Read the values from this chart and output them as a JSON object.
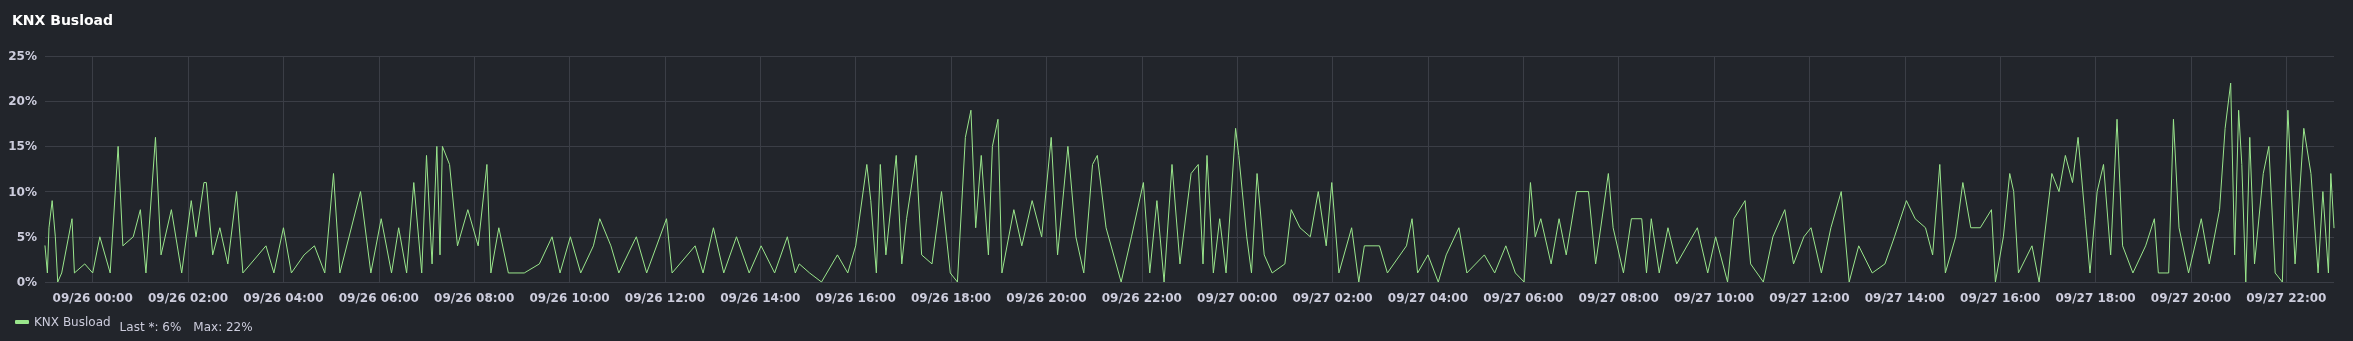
{
  "chart_data": {
    "type": "line",
    "title": "KNX Busload",
    "annotations": [
      "Last *: 6%",
      "Max: 22%"
    ],
    "legend": "bottom left",
    "grid": true,
    "marker": "none",
    "line_style": "solid",
    "xlim": [
      "--09-25T23:00",
      "--09-27T23:00"
    ],
    "xticks": [
      {
        "value": "--09-26T00:00",
        "label": "09/26 00:00"
      },
      {
        "value": "--09-26T02:00",
        "label": "09/26 02:00"
      },
      {
        "value": "--09-26T04:00",
        "label": "09/26 04:00"
      },
      {
        "value": "--09-26T06:00",
        "label": "09/26 06:00"
      },
      {
        "value": "--09-26T08:00",
        "label": "09/26 08:00"
      },
      {
        "value": "--09-26T10:00",
        "label": "09/26 10:00"
      },
      {
        "value": "--09-26T12:00",
        "label": "09/26 12:00"
      },
      {
        "value": "--09-26T14:00",
        "label": "09/26 14:00"
      },
      {
        "value": "--09-26T16:00",
        "label": "09/26 16:00"
      },
      {
        "value": "--09-26T18:00",
        "label": "09/26 18:00"
      },
      {
        "value": "--09-26T20:00",
        "label": "09/26 20:00"
      },
      {
        "value": "--09-26T22:00",
        "label": "09/26 22:00"
      },
      {
        "value": "--09-27T00:00",
        "label": "09/27 00:00"
      },
      {
        "value": "--09-27T02:00",
        "label": "09/27 02:00"
      },
      {
        "value": "--09-27T04:00",
        "label": "09/27 04:00"
      },
      {
        "value": "--09-27T06:00",
        "label": "09/27 06:00"
      },
      {
        "value": "--09-27T08:00",
        "label": "09/27 08:00"
      },
      {
        "value": "--09-27T10:00",
        "label": "09/27 10:00"
      },
      {
        "value": "--09-27T12:00",
        "label": "09/27 12:00"
      },
      {
        "value": "--09-27T14:00",
        "label": "09/27 14:00"
      },
      {
        "value": "--09-27T16:00",
        "label": "09/27 16:00"
      },
      {
        "value": "--09-27T18:00",
        "label": "09/27 18:00"
      },
      {
        "value": "--09-27T20:00",
        "label": "09/27 20:00"
      },
      {
        "value": "--09-27T22:00",
        "label": "09/27 22:00"
      }
    ],
    "ylim": [
      0,
      25
    ],
    "yticks": [
      {
        "value": 0,
        "label": "0%"
      },
      {
        "value": 5,
        "label": "5%"
      },
      {
        "value": 10,
        "label": "10%"
      },
      {
        "value": 15,
        "label": "15%"
      },
      {
        "value": 20,
        "label": "20%"
      },
      {
        "value": 25,
        "label": "25%"
      }
    ],
    "series": [
      {
        "name": "KNX Busload",
        "color": "#9ae68c",
        "x": [
          "--09-25T23:00",
          "--09-25T23:03",
          "--09-25T23:05",
          "--09-25T23:09",
          "--09-25T23:13",
          "--09-25T23:16",
          "--09-25T23:21",
          "--09-25T23:34",
          "--09-25T23:37",
          "--09-25T23:50",
          "--09-26T00:00",
          "--09-26T00:09",
          "--09-26T00:22",
          "--09-26T00:32",
          "--09-26T00:38",
          "--09-26T00:51",
          "--09-26T01:00",
          "--09-26T01:07",
          "--09-26T01:19",
          "--09-26T01:26",
          "--09-26T01:39",
          "--09-26T01:52",
          "--09-26T02:04",
          "--09-26T02:10",
          "--09-26T02:20",
          "--09-26T02:23",
          "--09-26T02:31",
          "--09-26T02:40",
          "--09-26T02:50",
          "--09-26T03:01",
          "--09-26T03:09",
          "--09-26T03:38",
          "--09-26T03:48",
          "--09-26T04:00",
          "--09-26T04:10",
          "--09-26T04:26",
          "--09-26T04:39",
          "--09-26T04:52",
          "--09-26T05:03",
          "--09-26T05:11",
          "--09-26T05:37",
          "--09-26T05:50",
          "--09-26T06:03",
          "--09-26T06:16",
          "--09-26T06:25",
          "--09-26T06:35",
          "--09-26T06:44",
          "--09-26T06:54",
          "--09-26T07:00",
          "--09-26T07:07",
          "--09-26T07:13",
          "--09-26T07:17",
          "--09-26T07:20",
          "--09-26T07:29",
          "--09-26T07:39",
          "--09-26T07:52",
          "--09-26T08:05",
          "--09-26T08:16",
          "--09-26T08:21",
          "--09-26T08:31",
          "--09-26T08:43",
          "--09-26T09:03",
          "--09-26T09:22",
          "--09-26T09:38",
          "--09-26T09:48",
          "--09-26T10:01",
          "--09-26T10:14",
          "--09-26T10:30",
          "--09-26T10:38",
          "--09-26T10:52",
          "--09-26T11:02",
          "--09-26T11:24",
          "--09-26T11:37",
          "--09-26T12:02",
          "--09-26T12:09",
          "--09-26T12:38",
          "--09-26T12:48",
          "--09-26T13:01",
          "--09-26T13:14",
          "--09-26T13:30",
          "--09-26T13:46",
          "--09-26T14:01",
          "--09-26T14:18",
          "--09-26T14:34",
          "--09-26T14:44",
          "--09-26T14:49",
          "--09-26T15:02",
          "--09-26T15:17",
          "--09-26T15:37",
          "--09-26T15:50",
          "--09-26T16:00",
          "--09-26T16:14",
          "--09-26T16:19",
          "--09-26T16:26",
          "--09-26T16:31",
          "--09-26T16:38",
          "--09-26T16:51",
          "--09-26T16:58",
          "--09-26T17:04",
          "--09-26T17:16",
          "--09-26T17:23",
          "--09-26T17:36",
          "--09-26T17:48",
          "--09-26T17:59",
          "--09-26T18:08",
          "--09-26T18:18",
          "--09-26T18:25",
          "--09-26T18:31",
          "--09-26T18:38",
          "--09-26T18:47",
          "--09-26T18:52",
          "--09-26T18:59",
          "--09-26T19:04",
          "--09-26T19:19",
          "--09-26T19:29",
          "--09-26T19:42",
          "--09-26T19:54",
          "--09-26T20:06",
          "--09-26T20:14",
          "--09-26T20:27",
          "--09-26T20:37",
          "--09-26T20:47",
          "--09-26T20:58",
          "--09-26T21:04",
          "--09-26T21:15",
          "--09-26T21:34",
          "--09-26T21:47",
          "--09-26T22:02",
          "--09-26T22:10",
          "--09-26T22:19",
          "--09-26T22:28",
          "--09-26T22:38",
          "--09-26T22:48",
          "--09-26T23:02",
          "--09-26T23:11",
          "--09-26T23:17",
          "--09-26T23:22",
          "--09-26T23:30",
          "--09-26T23:38",
          "--09-26T23:46",
          "--09-26T23:58",
          "--09-27T00:02",
          "--09-27T00:12",
          "--09-27T00:18",
          "--09-27T00:25",
          "--09-27T00:34",
          "--09-27T00:44",
          "--09-27T01:00",
          "--09-27T01:08",
          "--09-27T01:19",
          "--09-27T01:32",
          "--09-27T01:42",
          "--09-27T01:52",
          "--09-27T01:59",
          "--09-27T02:08",
          "--09-27T02:24",
          "--09-27T02:33",
          "--09-27T02:40",
          "--09-27T02:59",
          "--09-27T03:09",
          "--09-27T03:33",
          "--09-27T03:40",
          "--09-27T03:47",
          "--09-27T04:00",
          "--09-27T04:13",
          "--09-27T04:23",
          "--09-27T04:39",
          "--09-27T04:49",
          "--09-27T05:11",
          "--09-27T05:24",
          "--09-27T05:38",
          "--09-27T05:50",
          "--09-27T06:01",
          "--09-27T06:09",
          "--09-27T06:15",
          "--09-27T06:22",
          "--09-27T06:35",
          "--09-27T06:45",
          "--09-27T06:54",
          "--09-27T07:07",
          "--09-27T07:22",
          "--09-27T07:31",
          "--09-27T07:47",
          "--09-27T07:53",
          "--09-27T08:06",
          "--09-27T08:16",
          "--09-27T08:29",
          "--09-27T08:35",
          "--09-27T08:41",
          "--09-27T08:51",
          "--09-27T09:02",
          "--09-27T09:13",
          "--09-27T09:39",
          "--09-27T09:52",
          "--09-27T10:02",
          "--09-27T10:17",
          "--09-27T10:25",
          "--09-27T10:39",
          "--09-27T10:46",
          "--09-27T11:02",
          "--09-27T11:14",
          "--09-27T11:29",
          "--09-27T11:40",
          "--09-27T11:53",
          "--09-27T12:02",
          "--09-27T12:15",
          "--09-27T12:27",
          "--09-27T12:40",
          "--09-27T12:50",
          "--09-27T13:02",
          "--09-27T13:19",
          "--09-27T13:35",
          "--09-27T13:47",
          "--09-27T14:02",
          "--09-27T14:13",
          "--09-27T14:26",
          "--09-27T14:35",
          "--09-27T14:44",
          "--09-27T14:51",
          "--09-27T15:04",
          "--09-27T15:13",
          "--09-27T15:23",
          "--09-27T15:35",
          "--09-27T15:49",
          "--09-27T15:54",
          "--09-27T16:04",
          "--09-27T16:12",
          "--09-27T16:17",
          "--09-27T16:23",
          "--09-27T16:40",
          "--09-27T16:49",
          "--09-27T17:05",
          "--09-27T17:14",
          "--09-27T17:22",
          "--09-27T17:31",
          "--09-27T17:38",
          "--09-27T17:47",
          "--09-27T17:53",
          "--09-27T18:02",
          "--09-27T18:10",
          "--09-27T18:19",
          "--09-27T18:27",
          "--09-27T18:34",
          "--09-27T18:47",
          "--09-27T19:03",
          "--09-27T19:14",
          "--09-27T19:19",
          "--09-27T19:32",
          "--09-27T19:38",
          "--09-27T19:45",
          "--09-27T19:57",
          "--09-27T20:13",
          "--09-27T20:23",
          "--09-27T20:36",
          "--09-27T20:43",
          "--09-27T20:50",
          "--09-27T20:55",
          "--09-27T21:00",
          "--09-27T21:04",
          "--09-27T21:09",
          "--09-27T21:14",
          "--09-27T21:20",
          "--09-27T21:31",
          "--09-27T21:38",
          "--09-27T21:46",
          "--09-27T21:55",
          "--09-27T22:02",
          "--09-27T22:11",
          "--09-27T22:22",
          "--09-27T22:31",
          "--09-27T22:40",
          "--09-27T22:46",
          "--09-27T22:53",
          "--09-27T22:56",
          "--09-27T23:00"
        ],
        "values": [
          4,
          1,
          6,
          9,
          5,
          0,
          1,
          7,
          1,
          2,
          1,
          5,
          1,
          15,
          4,
          5,
          8,
          1,
          16,
          3,
          8,
          1,
          9,
          5,
          11,
          11,
          3,
          6,
          2,
          10,
          1,
          4,
          1,
          6,
          1,
          3,
          4,
          1,
          12,
          1,
          10,
          1,
          7,
          1,
          6,
          1,
          11,
          1,
          14,
          2,
          15,
          3,
          15,
          13,
          4,
          8,
          4,
          13,
          1,
          6,
          1,
          1,
          2,
          5,
          1,
          5,
          1,
          4,
          7,
          4,
          1,
          5,
          1,
          7,
          1,
          4,
          1,
          6,
          1,
          5,
          1,
          4,
          1,
          5,
          1,
          2,
          1,
          0,
          3,
          1,
          4,
          13,
          9,
          1,
          13,
          3,
          14,
          2,
          7,
          14,
          3,
          2,
          10,
          1,
          0,
          16,
          19,
          6,
          14,
          3,
          15,
          18,
          1,
          8,
          4,
          9,
          5,
          16,
          3,
          15,
          5,
          1,
          13,
          14,
          6,
          0,
          5,
          11,
          1,
          9,
          0,
          13,
          2,
          12,
          13,
          2,
          14,
          1,
          7,
          1,
          17,
          14,
          5,
          1,
          12,
          3,
          1,
          2,
          8,
          6,
          5,
          10,
          4,
          11,
          1,
          6,
          0,
          4,
          4,
          1,
          4,
          7,
          1,
          3,
          0,
          3,
          6,
          1,
          3,
          1,
          4,
          1,
          0,
          11,
          5,
          7,
          2,
          7,
          3,
          10,
          10,
          2,
          12,
          6,
          1,
          7,
          7,
          1,
          7,
          1,
          6,
          2,
          6,
          1,
          5,
          0,
          7,
          9,
          2,
          0,
          5,
          8,
          2,
          5,
          6,
          1,
          6,
          10,
          0,
          4,
          1,
          2,
          5,
          9,
          7,
          6,
          3,
          13,
          1,
          5,
          11,
          6,
          6,
          8,
          0,
          5,
          12,
          10,
          1,
          4,
          0,
          12,
          10,
          14,
          11,
          16,
          7,
          1,
          10,
          13,
          3,
          18,
          4,
          1,
          4,
          7,
          1,
          1,
          18,
          6,
          1,
          7,
          2,
          8,
          17,
          22,
          3,
          19,
          13,
          0,
          16,
          2,
          12,
          15,
          1,
          0,
          19,
          2,
          17,
          12,
          1,
          10,
          1,
          12,
          6
        ]
      }
    ]
  }
}
